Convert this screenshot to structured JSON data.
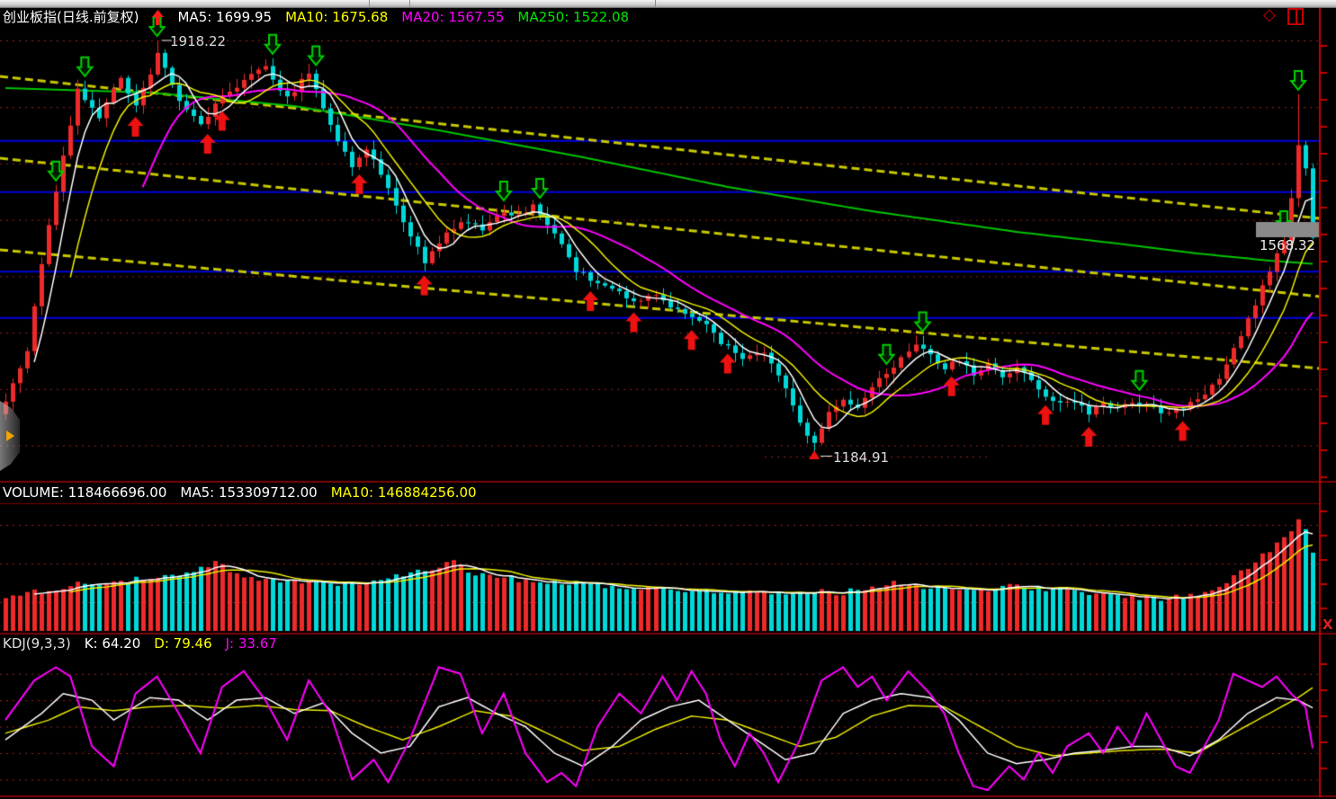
{
  "main_header": {
    "title": "创业板指(日线.前复权)",
    "mas": [
      {
        "label": "MA5: 1699.95",
        "color": "#ffffff"
      },
      {
        "label": "MA10: 1675.68",
        "color": "#ffff00"
      },
      {
        "label": "MA20: 1567.55",
        "color": "#ff00ff"
      },
      {
        "label": "MA250: 1522.08",
        "color": "#00e600"
      }
    ]
  },
  "window_icons": {
    "diamond_glyph": "◇"
  },
  "volume_header": {
    "volume": {
      "label": "VOLUME: 118466696.00",
      "color": "#ffffff"
    },
    "ma5": {
      "label": "MA5: 153309712.00",
      "color": "#ffffff"
    },
    "ma10": {
      "label": "MA10: 146884256.00",
      "color": "#ffff00"
    }
  },
  "kdj_header": {
    "name": {
      "label": "KDJ(9,3,3)",
      "color": "#e0e0e0"
    },
    "k": {
      "label": "K: 64.20",
      "color": "#ffffff"
    },
    "d": {
      "label": "D: 79.46",
      "color": "#ffff00"
    },
    "j": {
      "label": "J: 33.67",
      "color": "#ff00ff"
    }
  },
  "annotations": {
    "high_label": "1918.22",
    "low_label": "1184.91",
    "price_tag": "1568.32"
  },
  "misc": {
    "close_glyph": "X"
  },
  "colors": {
    "up": "#ee2a2a",
    "down": "#00d8d8",
    "ma5": "#ffffff",
    "ma10": "#f0f000",
    "ma20": "#ff00ff",
    "ma250": "#00c400",
    "grid": "#a32020",
    "blue_level": "#0000e0",
    "channel": "#c8c800",
    "axis": "#c40000",
    "separator": "#7c0404",
    "buy_arrow": "#ee1111",
    "sell_arrow": "#00d000",
    "k": "#ffffff",
    "d": "#e8e800",
    "j": "#ff00ff",
    "price_tag_box": "#8a8a8a"
  },
  "chart_data": {
    "type": "candlestick",
    "title": "创业板指(日线.前复权)",
    "panels": [
      "price",
      "volume",
      "kdj"
    ],
    "bars_count": 182,
    "price_range_approx": [
      1150,
      1990
    ],
    "high": 1918.22,
    "low": 1184.91,
    "last_price": 1568.32,
    "ma_values": {
      "ma5": 1699.95,
      "ma10": 1675.68,
      "ma20": 1567.55,
      "ma250": 1522.08
    },
    "close_keypoints": [
      [
        0,
        1280.6
      ],
      [
        3,
        1368.2
      ],
      [
        6,
        1591.4
      ],
      [
        10,
        1830.6
      ],
      [
        13,
        1782.7
      ],
      [
        16,
        1854.5
      ],
      [
        18,
        1798.7
      ],
      [
        21,
        1894.3
      ],
      [
        24,
        1806.6
      ],
      [
        27,
        1766.8
      ],
      [
        30,
        1822.6
      ],
      [
        33,
        1846.5
      ],
      [
        36,
        1870.4
      ],
      [
        39,
        1814.6
      ],
      [
        42,
        1862.4
      ],
      [
        45,
        1766.8
      ],
      [
        48,
        1695.1
      ],
      [
        50,
        1726.9
      ],
      [
        53,
        1655.2
      ],
      [
        56,
        1567.5
      ],
      [
        58,
        1527.7
      ],
      [
        60,
        1559.5
      ],
      [
        63,
        1599.4
      ],
      [
        66,
        1583.5
      ],
      [
        69,
        1615.3
      ],
      [
        71,
        1607.4
      ],
      [
        73,
        1626.5
      ],
      [
        76,
        1575.5
      ],
      [
        79,
        1511.7
      ],
      [
        82,
        1487.8
      ],
      [
        84,
        1479.8
      ],
      [
        87,
        1455.9
      ],
      [
        90,
        1463.9
      ],
      [
        93,
        1440.0
      ],
      [
        96,
        1424.0
      ],
      [
        99,
        1384.2
      ],
      [
        102,
        1352.3
      ],
      [
        105,
        1368.2
      ],
      [
        108,
        1304.5
      ],
      [
        110,
        1240.7
      ],
      [
        112,
        1200.9
      ],
      [
        114,
        1256.6
      ],
      [
        116,
        1280.6
      ],
      [
        118,
        1264.6
      ],
      [
        120,
        1304.5
      ],
      [
        122,
        1328.4
      ],
      [
        124,
        1352.3
      ],
      [
        126,
        1376.2
      ],
      [
        128,
        1360.3
      ],
      [
        130,
        1336.4
      ],
      [
        132,
        1352.3
      ],
      [
        134,
        1328.4
      ],
      [
        136,
        1344.3
      ],
      [
        138,
        1323.6
      ],
      [
        140,
        1339.5
      ],
      [
        142,
        1312.4
      ],
      [
        144,
        1288.5
      ],
      [
        146,
        1272.6
      ],
      [
        148,
        1280.6
      ],
      [
        150,
        1256.6
      ],
      [
        152,
        1272.6
      ],
      [
        154,
        1264.6
      ],
      [
        156,
        1275.8
      ],
      [
        158,
        1269.4
      ],
      [
        160,
        1259.8
      ],
      [
        162,
        1264.6
      ],
      [
        164,
        1272.6
      ],
      [
        166,
        1288.5
      ],
      [
        168,
        1320.4
      ],
      [
        170,
        1368.2
      ],
      [
        172,
        1424.0
      ],
      [
        174,
        1479.8
      ],
      [
        176,
        1543.6
      ],
      [
        177,
        1559.5
      ],
      [
        178,
        1639.3
      ],
      [
        179,
        1734.9
      ],
      [
        180,
        1687.1
      ],
      [
        181,
        1568.32
      ]
    ],
    "pinned_highs": {
      "21": 1918.22,
      "179": 1822.6
    },
    "pinned_lows": {
      "112": 1184.91
    },
    "ma250_keypoints": [
      [
        0,
        1833.8
      ],
      [
        20,
        1825.8
      ],
      [
        40,
        1801.9
      ],
      [
        60,
        1758.8
      ],
      [
        80,
        1711.0
      ],
      [
        100,
        1658.4
      ],
      [
        120,
        1615.3
      ],
      [
        140,
        1578.7
      ],
      [
        155,
        1556.4
      ],
      [
        165,
        1540.4
      ],
      [
        175,
        1527.7
      ],
      [
        181,
        1522.08
      ]
    ],
    "grid_prices": [
      1800,
      1700,
      1600,
      1500,
      1400,
      1300,
      1200
    ],
    "blue_levels": [
      1741,
      1650,
      1509,
      1427
    ],
    "channel_lines": [
      [
        1854.5,
        1602.6
      ],
      [
        1709.4,
        1463.9
      ],
      [
        1546.8,
        1336.3
      ]
    ],
    "buy_signal_bars": [
      18,
      28,
      30,
      49,
      58,
      81,
      87,
      95,
      100,
      131,
      144,
      150,
      163
    ],
    "sell_signal_bars": [
      7,
      11,
      21,
      37,
      43,
      69,
      74,
      122,
      127,
      157,
      177,
      179
    ],
    "volume": {
      "current": 118466696.0,
      "ma5": 153309712.0,
      "ma10": 146884256.0,
      "keypoints": [
        [
          0,
          0.28
        ],
        [
          5,
          0.32
        ],
        [
          10,
          0.38
        ],
        [
          15,
          0.4
        ],
        [
          20,
          0.42
        ],
        [
          25,
          0.45
        ],
        [
          29,
          0.55
        ],
        [
          33,
          0.42
        ],
        [
          40,
          0.4
        ],
        [
          48,
          0.38
        ],
        [
          55,
          0.45
        ],
        [
          60,
          0.52
        ],
        [
          62,
          0.58
        ],
        [
          65,
          0.45
        ],
        [
          70,
          0.42
        ],
        [
          75,
          0.4
        ],
        [
          80,
          0.38
        ],
        [
          85,
          0.36
        ],
        [
          90,
          0.34
        ],
        [
          95,
          0.33
        ],
        [
          100,
          0.32
        ],
        [
          105,
          0.3
        ],
        [
          110,
          0.33
        ],
        [
          115,
          0.3
        ],
        [
          120,
          0.35
        ],
        [
          123,
          0.4
        ],
        [
          126,
          0.37
        ],
        [
          130,
          0.33
        ],
        [
          135,
          0.34
        ],
        [
          140,
          0.36
        ],
        [
          145,
          0.33
        ],
        [
          150,
          0.3
        ],
        [
          155,
          0.28
        ],
        [
          160,
          0.26
        ],
        [
          163,
          0.28
        ],
        [
          166,
          0.3
        ],
        [
          168,
          0.35
        ],
        [
          170,
          0.45
        ],
        [
          172,
          0.52
        ],
        [
          174,
          0.6
        ],
        [
          176,
          0.7
        ],
        [
          178,
          0.82
        ],
        [
          179,
          0.88
        ],
        [
          180,
          0.82
        ],
        [
          181,
          0.65
        ]
      ]
    },
    "kdj": {
      "params": "9,3,3",
      "k": 64.2,
      "d": 79.46,
      "j": 33.67,
      "grid_values": [
        10,
        30,
        50,
        70,
        90
      ],
      "k_keypoints": [
        [
          0,
          40
        ],
        [
          5,
          60
        ],
        [
          8,
          75
        ],
        [
          12,
          70
        ],
        [
          15,
          55
        ],
        [
          20,
          72
        ],
        [
          24,
          70
        ],
        [
          28,
          55
        ],
        [
          32,
          70
        ],
        [
          36,
          72
        ],
        [
          40,
          60
        ],
        [
          44,
          68
        ],
        [
          48,
          45
        ],
        [
          52,
          30
        ],
        [
          56,
          35
        ],
        [
          60,
          65
        ],
        [
          64,
          72
        ],
        [
          68,
          60
        ],
        [
          72,
          50
        ],
        [
          76,
          30
        ],
        [
          80,
          20
        ],
        [
          84,
          35
        ],
        [
          88,
          55
        ],
        [
          92,
          65
        ],
        [
          96,
          70
        ],
        [
          100,
          55
        ],
        [
          104,
          40
        ],
        [
          108,
          25
        ],
        [
          112,
          30
        ],
        [
          116,
          60
        ],
        [
          120,
          70
        ],
        [
          124,
          75
        ],
        [
          128,
          72
        ],
        [
          132,
          55
        ],
        [
          136,
          30
        ],
        [
          140,
          22
        ],
        [
          144,
          25
        ],
        [
          148,
          30
        ],
        [
          152,
          32
        ],
        [
          156,
          35
        ],
        [
          160,
          35
        ],
        [
          164,
          28
        ],
        [
          168,
          40
        ],
        [
          172,
          60
        ],
        [
          176,
          72
        ],
        [
          179,
          70
        ],
        [
          181,
          64.2
        ]
      ],
      "d_keypoints": [
        [
          0,
          45
        ],
        [
          6,
          55
        ],
        [
          10,
          65
        ],
        [
          15,
          62
        ],
        [
          20,
          65
        ],
        [
          25,
          66
        ],
        [
          30,
          64
        ],
        [
          35,
          66
        ],
        [
          40,
          63
        ],
        [
          45,
          62
        ],
        [
          50,
          50
        ],
        [
          55,
          40
        ],
        [
          60,
          50
        ],
        [
          65,
          62
        ],
        [
          70,
          58
        ],
        [
          75,
          45
        ],
        [
          80,
          32
        ],
        [
          85,
          35
        ],
        [
          90,
          48
        ],
        [
          95,
          58
        ],
        [
          100,
          55
        ],
        [
          105,
          45
        ],
        [
          110,
          35
        ],
        [
          115,
          42
        ],
        [
          120,
          58
        ],
        [
          125,
          66
        ],
        [
          130,
          65
        ],
        [
          135,
          50
        ],
        [
          140,
          35
        ],
        [
          145,
          28
        ],
        [
          150,
          30
        ],
        [
          155,
          32
        ],
        [
          160,
          33
        ],
        [
          165,
          30
        ],
        [
          170,
          45
        ],
        [
          175,
          60
        ],
        [
          179,
          72
        ],
        [
          181,
          79.46
        ]
      ],
      "j_keypoints": [
        [
          0,
          55
        ],
        [
          4,
          85
        ],
        [
          7,
          95
        ],
        [
          9,
          88
        ],
        [
          12,
          35
        ],
        [
          15,
          20
        ],
        [
          18,
          75
        ],
        [
          21,
          88
        ],
        [
          24,
          60
        ],
        [
          27,
          30
        ],
        [
          30,
          80
        ],
        [
          33,
          92
        ],
        [
          36,
          70
        ],
        [
          39,
          40
        ],
        [
          42,
          85
        ],
        [
          45,
          60
        ],
        [
          48,
          10
        ],
        [
          51,
          25
        ],
        [
          53,
          8
        ],
        [
          56,
          40
        ],
        [
          60,
          95
        ],
        [
          63,
          90
        ],
        [
          66,
          45
        ],
        [
          69,
          75
        ],
        [
          72,
          30
        ],
        [
          75,
          8
        ],
        [
          77,
          15
        ],
        [
          79,
          5
        ],
        [
          82,
          50
        ],
        [
          85,
          75
        ],
        [
          88,
          60
        ],
        [
          91,
          88
        ],
        [
          93,
          70
        ],
        [
          95,
          92
        ],
        [
          97,
          75
        ],
        [
          99,
          40
        ],
        [
          101,
          20
        ],
        [
          103,
          45
        ],
        [
          105,
          30
        ],
        [
          107,
          8
        ],
        [
          110,
          40
        ],
        [
          113,
          85
        ],
        [
          116,
          95
        ],
        [
          118,
          80
        ],
        [
          120,
          88
        ],
        [
          122,
          70
        ],
        [
          125,
          92
        ],
        [
          128,
          75
        ],
        [
          130,
          60
        ],
        [
          132,
          30
        ],
        [
          134,
          5
        ],
        [
          136,
          2
        ],
        [
          139,
          20
        ],
        [
          141,
          10
        ],
        [
          143,
          30
        ],
        [
          145,
          15
        ],
        [
          147,
          35
        ],
        [
          150,
          45
        ],
        [
          152,
          30
        ],
        [
          154,
          50
        ],
        [
          156,
          35
        ],
        [
          158,
          60
        ],
        [
          160,
          40
        ],
        [
          162,
          20
        ],
        [
          164,
          15
        ],
        [
          166,
          35
        ],
        [
          168,
          55
        ],
        [
          170,
          90
        ],
        [
          172,
          85
        ],
        [
          174,
          80
        ],
        [
          176,
          88
        ],
        [
          178,
          75
        ],
        [
          180,
          65
        ],
        [
          181,
          33.67
        ]
      ]
    }
  }
}
